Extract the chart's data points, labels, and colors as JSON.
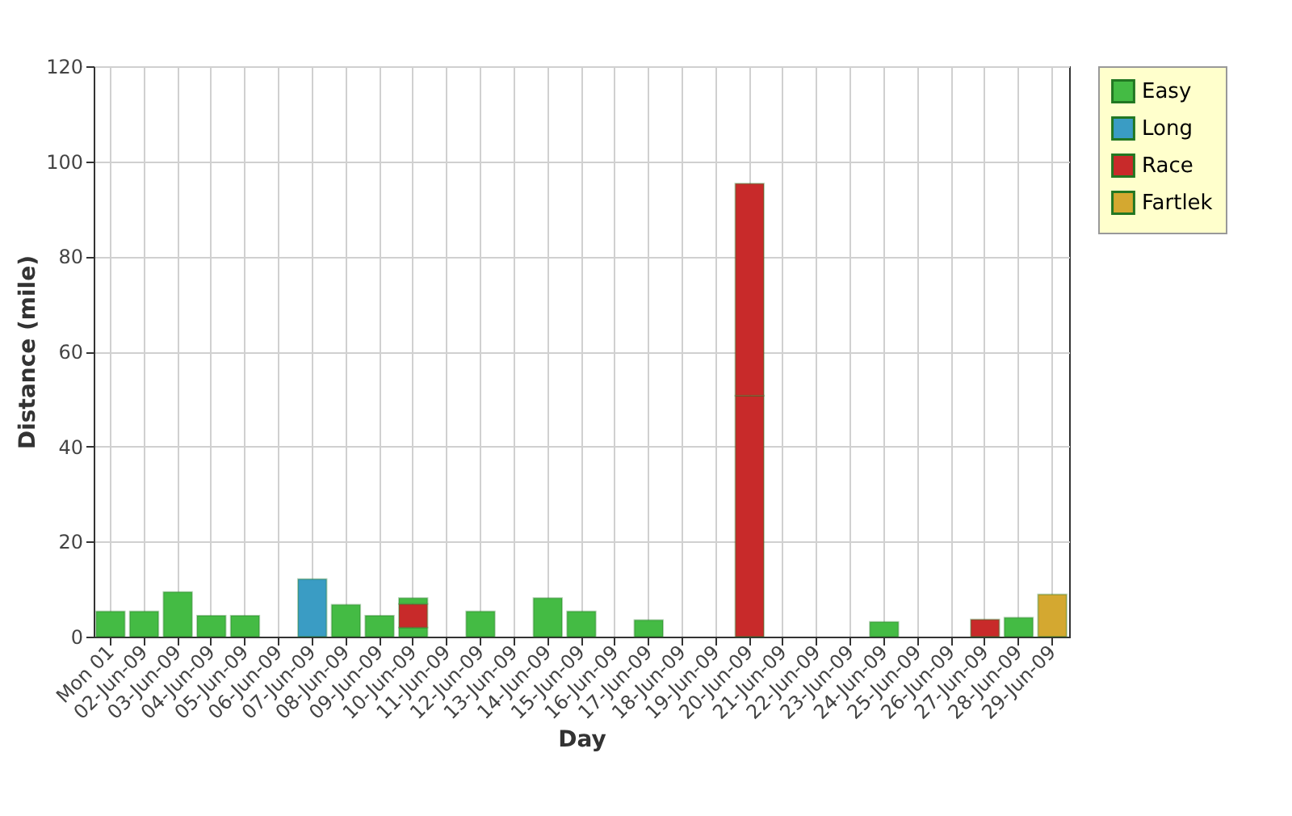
{
  "chart_data": {
    "type": "bar",
    "stacked": true,
    "xlabel": "Day",
    "ylabel": "Distance (mile)",
    "categories": [
      "Mon 01",
      "02-Jun-09",
      "03-Jun-09",
      "04-Jun-09",
      "05-Jun-09",
      "06-Jun-09",
      "07-Jun-09",
      "08-Jun-09",
      "09-Jun-09",
      "10-Jun-09",
      "11-Jun-09",
      "12-Jun-09",
      "13-Jun-09",
      "14-Jun-09",
      "15-Jun-09",
      "16-Jun-09",
      "17-Jun-09",
      "18-Jun-09",
      "19-Jun-09",
      "20-Jun-09",
      "21-Jun-09",
      "22-Jun-09",
      "23-Jun-09",
      "24-Jun-09",
      "25-Jun-09",
      "26-Jun-09",
      "27-Jun-09",
      "28-Jun-09",
      "29-Jun-09"
    ],
    "series": [
      {
        "name": "Easy",
        "color": "#44bb44",
        "values": [
          5.3,
          5.3,
          9.4,
          4.4,
          4.4,
          null,
          null,
          6.7,
          4.4,
          1.9,
          null,
          5.3,
          null,
          8.1,
          5.3,
          null,
          3.5,
          null,
          null,
          null,
          null,
          null,
          null,
          3.1,
          null,
          null,
          null,
          4.0,
          null
        ]
      },
      {
        "name": "Long",
        "color": "#3a9cc4",
        "values": [
          null,
          null,
          null,
          null,
          null,
          null,
          12.1,
          null,
          null,
          null,
          null,
          null,
          null,
          null,
          null,
          null,
          null,
          null,
          null,
          null,
          null,
          null,
          null,
          null,
          null,
          null,
          null,
          null,
          null
        ]
      },
      {
        "name": "Race",
        "color": "#c82a2a",
        "values": [
          null,
          null,
          null,
          null,
          null,
          null,
          null,
          null,
          null,
          5.0,
          null,
          null,
          null,
          null,
          null,
          null,
          null,
          null,
          null,
          50.7,
          null,
          null,
          null,
          null,
          null,
          null,
          3.6,
          null,
          null
        ]
      },
      {
        "color": "#c82a2a",
        "values": [
          null,
          null,
          null,
          null,
          null,
          null,
          null,
          null,
          null,
          null,
          null,
          null,
          null,
          null,
          null,
          null,
          null,
          null,
          null,
          44.6,
          null,
          null,
          null,
          null,
          null,
          null,
          null,
          null,
          null
        ]
      },
      {
        "color": "#44bb44",
        "values": [
          null,
          null,
          null,
          null,
          null,
          null,
          null,
          null,
          null,
          1.2,
          null,
          null,
          null,
          null,
          null,
          null,
          null,
          null,
          null,
          null,
          null,
          null,
          null,
          null,
          null,
          null,
          null,
          null,
          null
        ]
      },
      {
        "name": "Fartlek",
        "color": "#d4a830",
        "values": [
          null,
          null,
          null,
          null,
          null,
          null,
          null,
          null,
          null,
          null,
          null,
          null,
          null,
          null,
          null,
          null,
          null,
          null,
          null,
          null,
          null,
          null,
          null,
          null,
          null,
          null,
          null,
          null,
          8.9
        ]
      }
    ],
    "ylim": [
      0,
      120
    ],
    "yticks": [
      0,
      20,
      40,
      60,
      80,
      100,
      120
    ],
    "grid": true,
    "legend": "top right"
  }
}
